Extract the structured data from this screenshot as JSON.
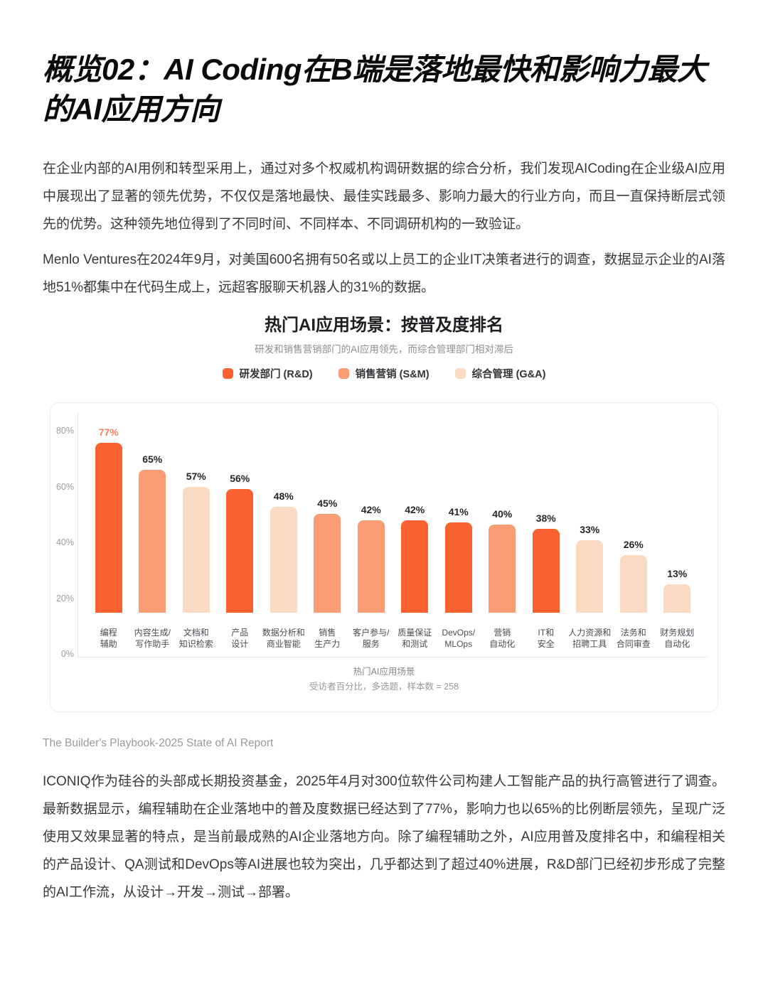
{
  "page": {
    "heading": "概览02：AI Coding在B端是落地最快和影响力最大的AI应用方向",
    "paragraph_1": "在企业内部的AI用例和转型采用上，通过对多个权威机构调研数据的综合分析，我们发现AICoding在企业级AI应用中展现出了显著的领先优势，不仅仅是落地最快、最佳实践最多、影响力最大的行业方向，而且一直保持断层式领先的优势。这种领先地位得到了不同时间、不同样本、不同调研机构的一致验证。",
    "paragraph_2": "Menlo Ventures在2024年9月，对美国600名拥有50名或以上员工的企业IT决策者进行的调查，数据显示企业的AI落地51%都集中在代码生成上，远超客服聊天机器人的31%的数据。",
    "source_caption": "The Builder's Playbook-2025 State of AI Report",
    "paragraph_3": "ICONIQ作为硅谷的头部成长期投资基金，2025年4月对300位软件公司构建人工智能产品的执行高管进行了调查。最新数据显示，编程辅助在企业落地中的普及度数据已经达到了77%，影响力也以65%的比例断层领先，呈现广泛使用又效果显著的特点，是当前最成熟的AI企业落地方向。除了编程辅助之外，AI应用普及度排名中，和编程相关的产品设计、QA测试和DevOps等AI进展也较为突出，几乎都达到了超过40%进展，R&D部门已经初步形成了完整的AI工作流，从设计→开发→测试→部署。"
  },
  "chart_data": {
    "type": "bar",
    "title": "热门AI应用场景：按普及度排名",
    "subtitle": "研发和销售营销部门的AI应用领先，而综合管理部门相对滞后",
    "legend_position": "top",
    "legend_items": [
      {
        "label": "研发部门 (R&D)",
        "key": "rd",
        "color": "#fa6130"
      },
      {
        "label": "销售营销 (S&M)",
        "key": "sm",
        "color": "#fa9c73"
      },
      {
        "label": "综合管理 (G&A)",
        "key": "ga",
        "color": "#fadac2"
      }
    ],
    "categories": [
      "编程辅助",
      "内容生成/写作助手",
      "文档和知识检索",
      "产品设计",
      "数据分析和商业智能",
      "销售生产力",
      "客户参与/服务",
      "质量保证和测试",
      "DevOps/MLOps",
      "营销自动化",
      "IT和安全",
      "人力资源和招聘工具",
      "法务和合同审查",
      "财务规划自动化"
    ],
    "category_label_lines": [
      [
        "编程",
        "辅助"
      ],
      [
        "内容生成/",
        "写作助手"
      ],
      [
        "文档和",
        "知识检索"
      ],
      [
        "产品",
        "设计"
      ],
      [
        "数据分析和",
        "商业智能"
      ],
      [
        "销售",
        "生产力"
      ],
      [
        "客户参与/",
        "服务"
      ],
      [
        "质量保证",
        "和测试"
      ],
      [
        "DevOps/",
        "MLOps"
      ],
      [
        "营销",
        "自动化"
      ],
      [
        "IT和",
        "安全"
      ],
      [
        "人力资源和",
        "招聘工具"
      ],
      [
        "法务和",
        "合同审查"
      ],
      [
        "财务规划",
        "自动化"
      ]
    ],
    "values": [
      77,
      65,
      57,
      56,
      48,
      45,
      42,
      42,
      41,
      40,
      38,
      33,
      26,
      13
    ],
    "bar_series": [
      "rd",
      "sm",
      "ga",
      "rd",
      "ga",
      "sm",
      "sm",
      "rd",
      "rd",
      "sm",
      "rd",
      "ga",
      "ga",
      "ga"
    ],
    "value_suffix": "%",
    "highlight_index": 0,
    "highlight_label_color": "#f5815b",
    "value_label_color": "#26262b",
    "y_ticks": [
      "80%",
      "60%",
      "40%",
      "20%",
      "0%"
    ],
    "ylim": [
      0,
      80
    ],
    "grid": false,
    "footnote_line1": "热门AI应用场景",
    "footnote_line2": "受访者百分比，多选题，样本数 = 258"
  }
}
